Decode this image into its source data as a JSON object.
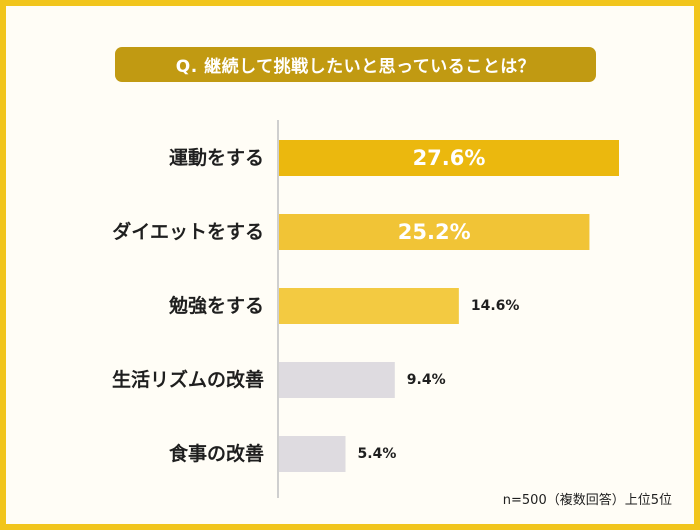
{
  "title": "Q. 継続して挑戦したいと思っていることは？",
  "note": "n=500（複数回答）上位5位",
  "colors": {
    "frame": "#f1c51c",
    "title_bg": "#c19a12",
    "bar_top1": "#ebb80e",
    "bar_top2": "#f1c436",
    "bar_top3": "#f3ca41",
    "bar_other": "#dedbe0",
    "axis": "#cfcfcf"
  },
  "chart_data": {
    "type": "bar",
    "orientation": "horizontal",
    "categories": [
      "運動をする",
      "ダイエットをする",
      "勉強をする",
      "生活リズムの改善",
      "食事の改善"
    ],
    "values": [
      27.6,
      25.2,
      14.6,
      9.4,
      5.4
    ],
    "value_labels": [
      "27.6%",
      "25.2%",
      "14.6%",
      "9.4%",
      "5.4%"
    ],
    "unit": "%",
    "xlim": [
      0,
      30
    ],
    "grid": false,
    "legend": "none"
  }
}
